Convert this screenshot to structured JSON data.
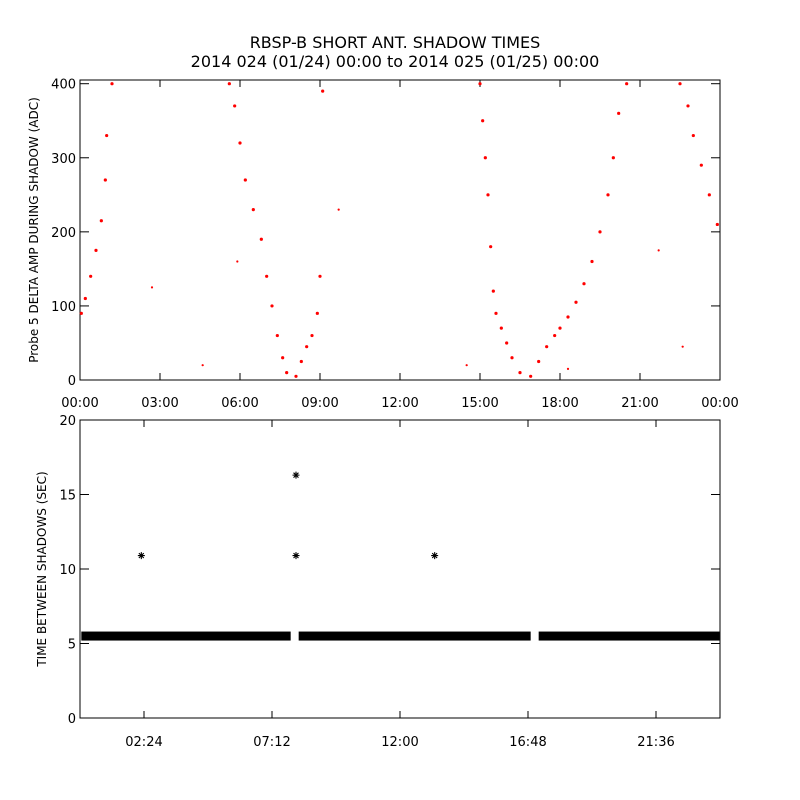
{
  "figure": {
    "title_line1": "RBSP-B SHORT ANT. SHADOW TIMES",
    "title_line2": "2014 024 (01/24) 00:00 to 2014 025 (01/25) 00:00"
  },
  "chart_data": [
    {
      "type": "scatter",
      "ylabel": "Probe 5 DELTA AMP DURING SHADOW (ADC)",
      "xlabel": "",
      "x_unit": "hours",
      "xlim": [
        0,
        24
      ],
      "ylim": [
        0,
        405
      ],
      "xticks": [
        0,
        3,
        6,
        9,
        12,
        15,
        18,
        21,
        24
      ],
      "xtick_labels": [
        "00:00",
        "03:00",
        "06:00",
        "09:00",
        "12:00",
        "15:00",
        "18:00",
        "21:00",
        "00:00"
      ],
      "yticks": [
        0,
        100,
        200,
        300,
        400
      ],
      "ytick_labels": [
        "0",
        "100",
        "200",
        "300",
        "400"
      ],
      "marker_color": "#ff0000",
      "grid": false,
      "series": [
        {
          "x": [
            0.05,
            0.2,
            0.4,
            0.6,
            0.8,
            0.95,
            1.0,
            1.2,
            5.6,
            5.8,
            6.0,
            6.2,
            6.5,
            6.8,
            7.0,
            7.2,
            7.4,
            7.6,
            7.75,
            8.1,
            8.3,
            8.5,
            8.7,
            8.9,
            9.0,
            9.1,
            15.0,
            15.1,
            15.2,
            15.3,
            15.4,
            15.5,
            15.6,
            15.8,
            16.0,
            16.2,
            16.5,
            16.9,
            17.2,
            17.5,
            17.8,
            18.0,
            18.3,
            18.6,
            18.9,
            19.2,
            19.5,
            19.8,
            20.0,
            20.2,
            20.5,
            22.5,
            22.8,
            23.0,
            23.3,
            23.6,
            23.9
          ],
          "y": [
            90,
            110,
            140,
            175,
            215,
            270,
            330,
            400,
            400,
            370,
            320,
            270,
            230,
            190,
            140,
            100,
            60,
            30,
            10,
            5,
            25,
            45,
            60,
            90,
            140,
            390,
            400,
            350,
            300,
            250,
            180,
            120,
            90,
            70,
            50,
            30,
            10,
            5,
            25,
            45,
            60,
            70,
            85,
            105,
            130,
            160,
            200,
            250,
            300,
            360,
            400,
            400,
            370,
            330,
            290,
            250,
            210
          ]
        }
      ],
      "outliers": {
        "x": [
          2.7,
          4.6,
          5.9,
          9.7,
          14.5,
          18.3,
          21.7,
          22.6
        ],
        "y": [
          125,
          20,
          160,
          230,
          20,
          15,
          175,
          45
        ]
      }
    },
    {
      "type": "scatter",
      "ylabel": "TIME BETWEEN SHADOWS (SEC)",
      "xlabel": "",
      "x_unit": "hours",
      "xlim": [
        0,
        24
      ],
      "ylim": [
        0,
        20
      ],
      "xticks": [
        2.4,
        7.2,
        12.0,
        16.8,
        21.6
      ],
      "xtick_labels": [
        "02:24",
        "07:12",
        "12:00",
        "16:48",
        "21:36"
      ],
      "yticks": [
        0,
        5,
        10,
        15,
        20
      ],
      "ytick_labels": [
        "0",
        "5",
        "10",
        "15",
        "20"
      ],
      "marker": "*",
      "marker_color": "#000000",
      "grid": false,
      "baseline": {
        "y": 5.5,
        "segments": [
          [
            0.05,
            7.9
          ],
          [
            8.2,
            16.9
          ],
          [
            17.2,
            23.98
          ]
        ]
      },
      "series": [
        {
          "x": [
            2.3,
            8.1,
            8.1,
            13.3
          ],
          "y": [
            10.9,
            16.3,
            10.9,
            10.9
          ]
        }
      ]
    }
  ]
}
